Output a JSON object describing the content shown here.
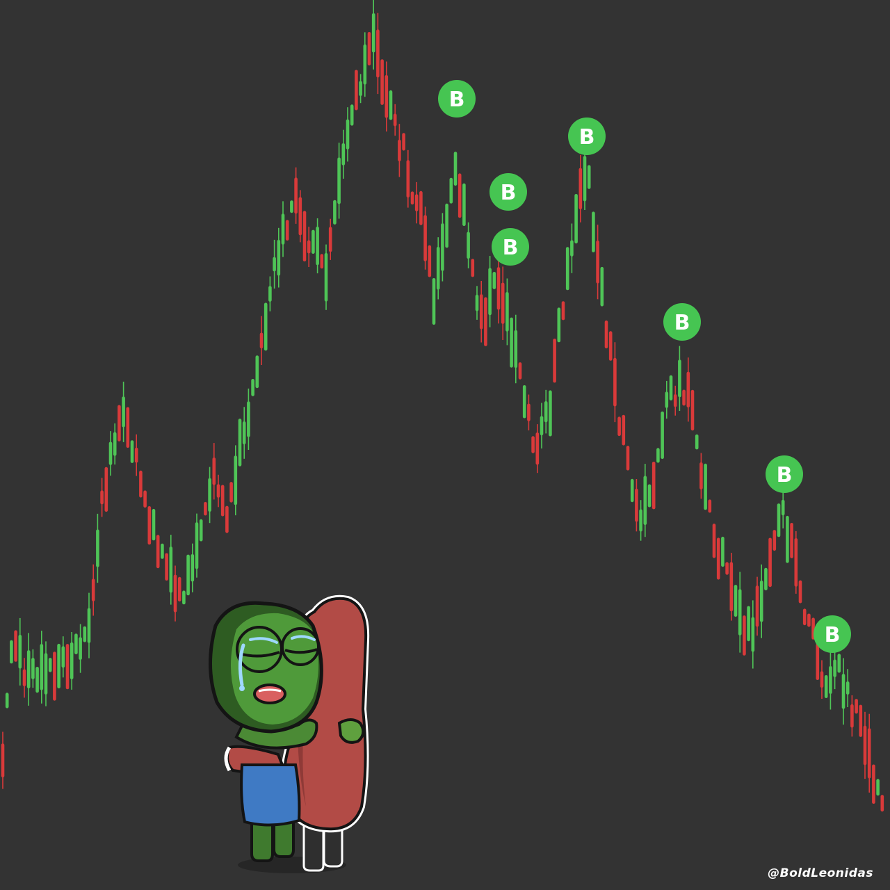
{
  "scene": {
    "background_color": "#333333",
    "candle_up_color": "#4fc557",
    "candle_down_color": "#d93a3a",
    "buy_marker_color": "#46c552",
    "buy_marker_text_color": "#ffffff"
  },
  "buy_marker": {
    "label": "B",
    "count": 7
  },
  "characters": {
    "frog_icon": "crying-frog-icon",
    "candle_character_icon": "red-candle-character-icon"
  },
  "signature": {
    "text": "@BoldLeonidas"
  }
}
